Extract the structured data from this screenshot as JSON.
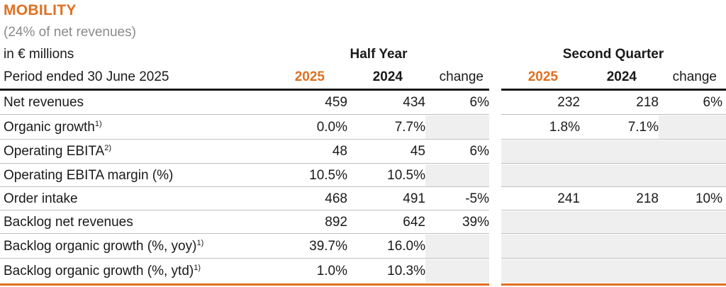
{
  "header": {
    "title": "MOBILITY",
    "subtitle": "(24% of net revenues)",
    "unit": "in € millions",
    "period": "Period ended 30 June 2025",
    "group_half": "Half Year",
    "group_quarter": "Second Quarter",
    "col_2025": "2025",
    "col_2024": "2024",
    "col_change": "change"
  },
  "rows": [
    {
      "label": "Net revenues",
      "sup": "",
      "h25": "459",
      "h24": "434",
      "hchg": "6%",
      "q25": "232",
      "q24": "218",
      "qchg": "6%"
    },
    {
      "label": "Organic growth",
      "sup": "1)",
      "h25": "0.0%",
      "h24": "7.7%",
      "hchg": "",
      "q25": "1.8%",
      "q24": "7.1%",
      "qchg": ""
    },
    {
      "label": "Operating EBITA",
      "sup": "2)",
      "h25": "48",
      "h24": "45",
      "hchg": "6%",
      "q25": "",
      "q24": "",
      "qchg": ""
    },
    {
      "label": "Operating EBITA margin (%)",
      "sup": "",
      "h25": "10.5%",
      "h24": "10.5%",
      "hchg": "",
      "q25": "",
      "q24": "",
      "qchg": ""
    },
    {
      "label": "Order intake",
      "sup": "",
      "h25": "468",
      "h24": "491",
      "hchg": "-5%",
      "q25": "241",
      "q24": "218",
      "qchg": "10%"
    },
    {
      "label": "Backlog net revenues",
      "sup": "",
      "h25": "892",
      "h24": "642",
      "hchg": "39%",
      "q25": "",
      "q24": "",
      "qchg": ""
    },
    {
      "label": "Backlog organic growth (%, yoy)",
      "sup": "1)",
      "h25": "39.7%",
      "h24": "16.0%",
      "hchg": "",
      "q25": "",
      "q24": "",
      "qchg": ""
    },
    {
      "label": "Backlog organic growth (%, ytd)",
      "sup": "1)",
      "h25": "1.0%",
      "h24": "10.3%",
      "hchg": "",
      "q25": "",
      "q24": "",
      "qchg": ""
    }
  ],
  "colors": {
    "accent": "#e07020",
    "muted": "#8a8a8a",
    "shade": "#efefef"
  }
}
